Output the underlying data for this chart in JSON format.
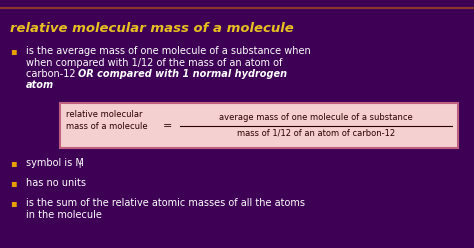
{
  "bg_color": "#3d0055",
  "title": "relative molecular mass of a molecule",
  "title_color": "#e8c020",
  "bullet_color": "#e8a000",
  "text_color": "#ffffff",
  "bullet1_line1": "is the average mass of one molecule of a substance when",
  "bullet1_line2": "when compared with 1/12 of the mass of an atom of",
  "bullet1_line3": "carbon-12 ",
  "bullet1_bold": "OR compared with 1 normal hydrogen",
  "bullet1_bold2": "atom",
  "box_bg": "#f5d0d0",
  "box_border": "#c06080",
  "box_left_label": "relative molecular\nmass of a molecule",
  "box_numerator": "average mass of one molecule of a substance",
  "box_denominator": "mass of 1/12 of an atom of carbon-12",
  "box_text_color": "#2a0000",
  "bullet2": "symbol is M",
  "bullet2r": "r",
  "bullet3": "has no units",
  "bullet4": "is the sum of the relative atomic masses of all the atoms",
  "bullet4b": "in the molecule",
  "font_size_title": 9.5,
  "font_size_body": 7.0,
  "font_size_box": 6.0,
  "font_size_bullet": 7.5
}
